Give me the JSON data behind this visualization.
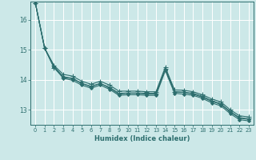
{
  "xlabel": "Humidex (Indice chaleur)",
  "background_color": "#cce8e8",
  "grid_color": "#ffffff",
  "line_color": "#2d6e6e",
  "xlim": [
    -0.5,
    23.5
  ],
  "ylim": [
    12.5,
    16.6
  ],
  "yticks": [
    13,
    14,
    15,
    16
  ],
  "xtick_labels": [
    "0",
    "1",
    "2",
    "3",
    "4",
    "5",
    "6",
    "7",
    "8",
    "9",
    "10",
    "11",
    "12",
    "13",
    "14",
    "15",
    "16",
    "17",
    "18",
    "19",
    "20",
    "21",
    "22",
    "23"
  ],
  "series": [
    [
      16.55,
      15.05,
      14.45,
      14.1,
      14.05,
      13.88,
      13.78,
      13.88,
      13.72,
      13.52,
      13.55,
      13.55,
      13.52,
      13.52,
      14.35,
      13.6,
      13.58,
      13.52,
      13.42,
      13.28,
      13.18,
      12.92,
      12.72,
      12.68
    ],
    [
      16.55,
      15.05,
      14.48,
      14.18,
      14.12,
      13.95,
      13.85,
      13.95,
      13.82,
      13.62,
      13.62,
      13.62,
      13.6,
      13.6,
      14.42,
      13.66,
      13.65,
      13.6,
      13.5,
      13.36,
      13.26,
      13.0,
      12.8,
      12.76
    ],
    [
      16.55,
      15.05,
      14.42,
      14.05,
      13.98,
      13.82,
      13.72,
      13.82,
      13.68,
      13.48,
      13.5,
      13.5,
      13.48,
      13.48,
      14.3,
      13.55,
      13.52,
      13.48,
      13.38,
      13.23,
      13.13,
      12.87,
      12.67,
      12.63
    ],
    [
      16.55,
      15.05,
      14.4,
      14.08,
      14.03,
      13.87,
      13.77,
      13.87,
      13.75,
      13.55,
      13.56,
      13.56,
      13.55,
      13.55,
      14.37,
      13.6,
      13.58,
      13.55,
      13.45,
      13.3,
      13.2,
      12.94,
      12.74,
      12.7
    ]
  ],
  "marker_styles": [
    "D",
    "+",
    "D",
    "+"
  ],
  "marker_sizes": [
    2.0,
    4.0,
    2.0,
    4.0
  ],
  "linewidths": [
    0.8,
    0.8,
    0.8,
    0.8
  ]
}
